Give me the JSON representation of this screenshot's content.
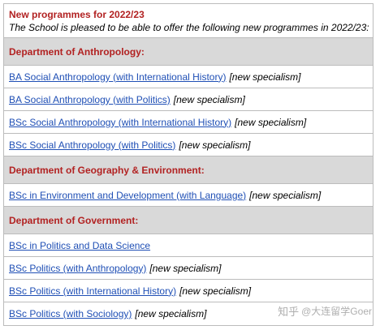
{
  "intro": {
    "title": "New programmes for 2022/23",
    "subtitle": "The School is pleased to be able to offer the following new programmes in 2022/23:"
  },
  "sections": [
    {
      "department": "Department of Anthropology:",
      "programmes": [
        {
          "name": "BA Social Anthropology (with International History)",
          "tag": "[new specialism]"
        },
        {
          "name": "BA Social Anthropology (with Politics)",
          "tag": "[new specialism]"
        },
        {
          "name": "BSc Social Anthropology (with International History)",
          "tag": "[new specialism]"
        },
        {
          "name": "BSc Social Anthropology (with Politics)",
          "tag": "[new specialism]"
        }
      ]
    },
    {
      "department": "Department of Geography & Environment:",
      "programmes": [
        {
          "name": "BSc in Environment and Development (with Language)",
          "tag": "[new specialism]"
        }
      ]
    },
    {
      "department": "Department of Government:",
      "programmes": [
        {
          "name": "BSc in Politics and Data Science",
          "tag": ""
        },
        {
          "name": "BSc Politics (with Anthropology)",
          "tag": "[new specialism]"
        },
        {
          "name": "BSc Politics (with International History)",
          "tag": "[new specialism]"
        },
        {
          "name": "BSc Politics (with Sociology)",
          "tag": "[new specialism]"
        }
      ]
    }
  ],
  "watermark": {
    "site": "知乎",
    "handle": "@大连留学Goer"
  }
}
